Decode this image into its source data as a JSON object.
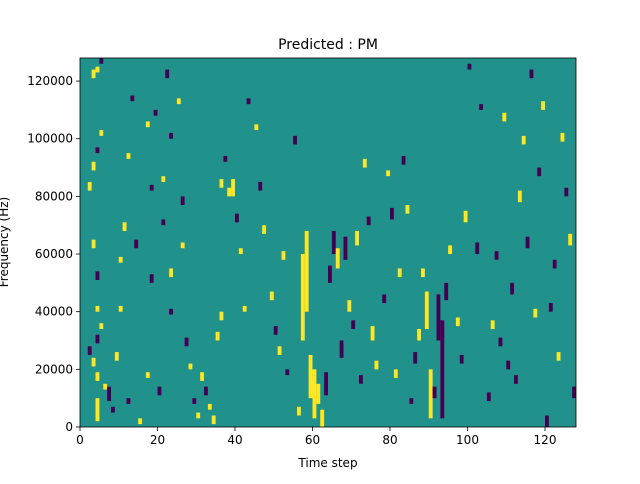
{
  "chart_data": {
    "type": "heatmap",
    "title": "Predicted : PM",
    "xlabel": "Time step",
    "ylabel": "Frequency (Hz)",
    "xlim": [
      0,
      128
    ],
    "ylim": [
      0,
      128000
    ],
    "xticks": [
      0,
      20,
      40,
      60,
      80,
      100,
      120
    ],
    "yticks": [
      0,
      20000,
      40000,
      60000,
      80000,
      100000,
      120000
    ],
    "xtick_labels": [
      "0",
      "20",
      "40",
      "60",
      "80",
      "100",
      "120"
    ],
    "ytick_labels": [
      "0",
      "20000",
      "40000",
      "60000",
      "80000",
      "100000",
      "120000"
    ],
    "grid": false,
    "colormap": "viridis",
    "colors": {
      "background": "#21918c",
      "high": "#fde725",
      "low": "#440154"
    },
    "n_time_steps": 128,
    "n_freq_bins": 128,
    "bin_hz": 1000,
    "background_value": 0,
    "cells": [
      {
        "t": 3,
        "f0": 121000,
        "f1": 124000,
        "v": 1
      },
      {
        "t": 4,
        "f0": 123000,
        "f1": 125000,
        "v": 1
      },
      {
        "t": 5,
        "f0": 126000,
        "f1": 128000,
        "v": -1
      },
      {
        "t": 3,
        "f0": 89000,
        "f1": 92000,
        "v": 1
      },
      {
        "t": 4,
        "f0": 95000,
        "f1": 97000,
        "v": -1
      },
      {
        "t": 5,
        "f0": 101000,
        "f1": 103000,
        "v": 1
      },
      {
        "t": 2,
        "f0": 82000,
        "f1": 85000,
        "v": 1
      },
      {
        "t": 3,
        "f0": 62000,
        "f1": 65000,
        "v": 1
      },
      {
        "t": 4,
        "f0": 51000,
        "f1": 54000,
        "v": -1
      },
      {
        "t": 4,
        "f0": 40000,
        "f1": 42000,
        "v": 1
      },
      {
        "t": 5,
        "f0": 34000,
        "f1": 36000,
        "v": 1
      },
      {
        "t": 4,
        "f0": 29000,
        "f1": 32000,
        "v": -1
      },
      {
        "t": 2,
        "f0": 25000,
        "f1": 28000,
        "v": -1
      },
      {
        "t": 3,
        "f0": 21000,
        "f1": 24000,
        "v": 1
      },
      {
        "t": 4,
        "f0": 16000,
        "f1": 19000,
        "v": 1
      },
      {
        "t": 6,
        "f0": 13000,
        "f1": 15000,
        "v": 1
      },
      {
        "t": 4,
        "f0": 2000,
        "f1": 10000,
        "v": 1
      },
      {
        "t": 7,
        "f0": 9000,
        "f1": 14000,
        "v": -1
      },
      {
        "t": 8,
        "f0": 5000,
        "f1": 7000,
        "v": -1
      },
      {
        "t": 9,
        "f0": 23000,
        "f1": 26000,
        "v": 1
      },
      {
        "t": 10,
        "f0": 40000,
        "f1": 42000,
        "v": 1
      },
      {
        "t": 11,
        "f0": 68000,
        "f1": 71000,
        "v": 1
      },
      {
        "t": 12,
        "f0": 93000,
        "f1": 95000,
        "v": 1
      },
      {
        "t": 13,
        "f0": 113000,
        "f1": 115000,
        "v": -1
      },
      {
        "t": 14,
        "f0": 62000,
        "f1": 65000,
        "v": -1
      },
      {
        "t": 10,
        "f0": 57000,
        "f1": 59000,
        "v": 1
      },
      {
        "t": 12,
        "f0": 8000,
        "f1": 10000,
        "v": -1
      },
      {
        "t": 15,
        "f0": 1000,
        "f1": 3000,
        "v": 1
      },
      {
        "t": 17,
        "f0": 17000,
        "f1": 19000,
        "v": 1
      },
      {
        "t": 18,
        "f0": 50000,
        "f1": 53000,
        "v": -1
      },
      {
        "t": 17,
        "f0": 104000,
        "f1": 106000,
        "v": 1
      },
      {
        "t": 18,
        "f0": 82000,
        "f1": 84000,
        "v": -1
      },
      {
        "t": 19,
        "f0": 108000,
        "f1": 110000,
        "v": -1
      },
      {
        "t": 20,
        "f0": 11000,
        "f1": 14000,
        "v": -1
      },
      {
        "t": 21,
        "f0": 85000,
        "f1": 87000,
        "v": 1
      },
      {
        "t": 21,
        "f0": 70000,
        "f1": 72000,
        "v": -1
      },
      {
        "t": 23,
        "f0": 52000,
        "f1": 55000,
        "v": 1
      },
      {
        "t": 23,
        "f0": 39000,
        "f1": 41000,
        "v": -1
      },
      {
        "t": 22,
        "f0": 121000,
        "f1": 124000,
        "v": -1
      },
      {
        "t": 23,
        "f0": 100000,
        "f1": 102000,
        "v": -1
      },
      {
        "t": 25,
        "f0": 112000,
        "f1": 114000,
        "v": 1
      },
      {
        "t": 26,
        "f0": 77000,
        "f1": 80000,
        "v": -1
      },
      {
        "t": 26,
        "f0": 62000,
        "f1": 64000,
        "v": 1
      },
      {
        "t": 27,
        "f0": 28000,
        "f1": 31000,
        "v": -1
      },
      {
        "t": 28,
        "f0": 20000,
        "f1": 22000,
        "v": 1
      },
      {
        "t": 29,
        "f0": 8000,
        "f1": 10000,
        "v": -1
      },
      {
        "t": 30,
        "f0": 3000,
        "f1": 5000,
        "v": 1
      },
      {
        "t": 31,
        "f0": 16000,
        "f1": 19000,
        "v": 1
      },
      {
        "t": 32,
        "f0": 11000,
        "f1": 14000,
        "v": -1
      },
      {
        "t": 33,
        "f0": 6000,
        "f1": 8000,
        "v": 1
      },
      {
        "t": 34,
        "f0": 1000,
        "f1": 4000,
        "v": 1
      },
      {
        "t": 35,
        "f0": 30000,
        "f1": 33000,
        "v": 1
      },
      {
        "t": 36,
        "f0": 37000,
        "f1": 40000,
        "v": 1
      },
      {
        "t": 36,
        "f0": 83000,
        "f1": 86000,
        "v": 1
      },
      {
        "t": 37,
        "f0": 92000,
        "f1": 94000,
        "v": -1
      },
      {
        "t": 38,
        "f0": 80000,
        "f1": 83000,
        "v": 1
      },
      {
        "t": 39,
        "f0": 80000,
        "f1": 86000,
        "v": 1
      },
      {
        "t": 40,
        "f0": 71000,
        "f1": 74000,
        "v": -1
      },
      {
        "t": 41,
        "f0": 60000,
        "f1": 62000,
        "v": 1
      },
      {
        "t": 42,
        "f0": 40000,
        "f1": 42000,
        "v": 1
      },
      {
        "t": 43,
        "f0": 112000,
        "f1": 114000,
        "v": -1
      },
      {
        "t": 45,
        "f0": 103000,
        "f1": 105000,
        "v": 1
      },
      {
        "t": 46,
        "f0": 82000,
        "f1": 85000,
        "v": -1
      },
      {
        "t": 47,
        "f0": 67000,
        "f1": 70000,
        "v": 1
      },
      {
        "t": 49,
        "f0": 44000,
        "f1": 47000,
        "v": 1
      },
      {
        "t": 50,
        "f0": 32000,
        "f1": 35000,
        "v": -1
      },
      {
        "t": 51,
        "f0": 25000,
        "f1": 28000,
        "v": 1
      },
      {
        "t": 52,
        "f0": 58000,
        "f1": 61000,
        "v": 1
      },
      {
        "t": 53,
        "f0": 18000,
        "f1": 20000,
        "v": -1
      },
      {
        "t": 55,
        "f0": 98000,
        "f1": 101000,
        "v": -1
      },
      {
        "t": 56,
        "f0": 4000,
        "f1": 7000,
        "v": 1
      },
      {
        "t": 57,
        "f0": 30000,
        "f1": 60000,
        "v": 1
      },
      {
        "t": 58,
        "f0": 40000,
        "f1": 68000,
        "v": 1
      },
      {
        "t": 59,
        "f0": 10000,
        "f1": 25000,
        "v": 1
      },
      {
        "t": 60,
        "f0": 3000,
        "f1": 20000,
        "v": 1
      },
      {
        "t": 61,
        "f0": 8000,
        "f1": 15000,
        "v": 1
      },
      {
        "t": 62,
        "f0": 0,
        "f1": 6000,
        "v": 1
      },
      {
        "t": 63,
        "f0": 11000,
        "f1": 19000,
        "v": -1
      },
      {
        "t": 64,
        "f0": 50000,
        "f1": 56000,
        "v": -1
      },
      {
        "t": 65,
        "f0": 60000,
        "f1": 68000,
        "v": -1
      },
      {
        "t": 66,
        "f0": 55000,
        "f1": 62000,
        "v": 1
      },
      {
        "t": 67,
        "f0": 24000,
        "f1": 30000,
        "v": -1
      },
      {
        "t": 68,
        "f0": 58000,
        "f1": 66000,
        "v": -1
      },
      {
        "t": 69,
        "f0": 40000,
        "f1": 44000,
        "v": 1
      },
      {
        "t": 70,
        "f0": 34000,
        "f1": 37000,
        "v": -1
      },
      {
        "t": 71,
        "f0": 63000,
        "f1": 68000,
        "v": 1
      },
      {
        "t": 72,
        "f0": 15000,
        "f1": 18000,
        "v": -1
      },
      {
        "t": 73,
        "f0": 90000,
        "f1": 93000,
        "v": 1
      },
      {
        "t": 74,
        "f0": 70000,
        "f1": 73000,
        "v": -1
      },
      {
        "t": 75,
        "f0": 30000,
        "f1": 35000,
        "v": 1
      },
      {
        "t": 76,
        "f0": 20000,
        "f1": 23000,
        "v": 1
      },
      {
        "t": 78,
        "f0": 43000,
        "f1": 46000,
        "v": -1
      },
      {
        "t": 79,
        "f0": 87000,
        "f1": 89000,
        "v": 1
      },
      {
        "t": 80,
        "f0": 72000,
        "f1": 76000,
        "v": -1
      },
      {
        "t": 81,
        "f0": 17000,
        "f1": 20000,
        "v": 1
      },
      {
        "t": 82,
        "f0": 52000,
        "f1": 55000,
        "v": 1
      },
      {
        "t": 83,
        "f0": 91000,
        "f1": 94000,
        "v": -1
      },
      {
        "t": 84,
        "f0": 74000,
        "f1": 77000,
        "v": 1
      },
      {
        "t": 85,
        "f0": 8000,
        "f1": 10000,
        "v": -1
      },
      {
        "t": 86,
        "f0": 22000,
        "f1": 26000,
        "v": -1
      },
      {
        "t": 87,
        "f0": 30000,
        "f1": 34000,
        "v": 1
      },
      {
        "t": 88,
        "f0": 52000,
        "f1": 55000,
        "v": 1
      },
      {
        "t": 89,
        "f0": 34000,
        "f1": 47000,
        "v": 1
      },
      {
        "t": 90,
        "f0": 3000,
        "f1": 20000,
        "v": 1
      },
      {
        "t": 91,
        "f0": 10000,
        "f1": 14000,
        "v": -1
      },
      {
        "t": 92,
        "f0": 30000,
        "f1": 46000,
        "v": -1
      },
      {
        "t": 93,
        "f0": 3000,
        "f1": 37000,
        "v": -1
      },
      {
        "t": 94,
        "f0": 44000,
        "f1": 50000,
        "v": -1
      },
      {
        "t": 95,
        "f0": 60000,
        "f1": 63000,
        "v": 1
      },
      {
        "t": 97,
        "f0": 35000,
        "f1": 38000,
        "v": 1
      },
      {
        "t": 98,
        "f0": 22000,
        "f1": 25000,
        "v": -1
      },
      {
        "t": 99,
        "f0": 71000,
        "f1": 75000,
        "v": 1
      },
      {
        "t": 100,
        "f0": 124000,
        "f1": 126000,
        "v": -1
      },
      {
        "t": 102,
        "f0": 60000,
        "f1": 64000,
        "v": -1
      },
      {
        "t": 103,
        "f0": 110000,
        "f1": 112000,
        "v": -1
      },
      {
        "t": 105,
        "f0": 9000,
        "f1": 12000,
        "v": -1
      },
      {
        "t": 106,
        "f0": 34000,
        "f1": 37000,
        "v": 1
      },
      {
        "t": 107,
        "f0": 58000,
        "f1": 61000,
        "v": -1
      },
      {
        "t": 108,
        "f0": 28000,
        "f1": 31000,
        "v": -1
      },
      {
        "t": 109,
        "f0": 106000,
        "f1": 109000,
        "v": 1
      },
      {
        "t": 110,
        "f0": 20000,
        "f1": 23000,
        "v": -1
      },
      {
        "t": 111,
        "f0": 46000,
        "f1": 50000,
        "v": -1
      },
      {
        "t": 112,
        "f0": 15000,
        "f1": 18000,
        "v": -1
      },
      {
        "t": 113,
        "f0": 78000,
        "f1": 82000,
        "v": 1
      },
      {
        "t": 114,
        "f0": 98000,
        "f1": 101000,
        "v": 1
      },
      {
        "t": 115,
        "f0": 62000,
        "f1": 66000,
        "v": -1
      },
      {
        "t": 116,
        "f0": 121000,
        "f1": 124000,
        "v": -1
      },
      {
        "t": 117,
        "f0": 38000,
        "f1": 41000,
        "v": 1
      },
      {
        "t": 118,
        "f0": 87000,
        "f1": 90000,
        "v": -1
      },
      {
        "t": 119,
        "f0": 110000,
        "f1": 113000,
        "v": 1
      },
      {
        "t": 120,
        "f0": 0,
        "f1": 4000,
        "v": -1
      },
      {
        "t": 121,
        "f0": 40000,
        "f1": 43000,
        "v": -1
      },
      {
        "t": 122,
        "f0": 55000,
        "f1": 58000,
        "v": -1
      },
      {
        "t": 123,
        "f0": 23000,
        "f1": 26000,
        "v": 1
      },
      {
        "t": 124,
        "f0": 99000,
        "f1": 102000,
        "v": 1
      },
      {
        "t": 125,
        "f0": 80000,
        "f1": 83000,
        "v": -1
      },
      {
        "t": 126,
        "f0": 63000,
        "f1": 67000,
        "v": 1
      },
      {
        "t": 127,
        "f0": 10000,
        "f1": 14000,
        "v": -1
      }
    ]
  }
}
